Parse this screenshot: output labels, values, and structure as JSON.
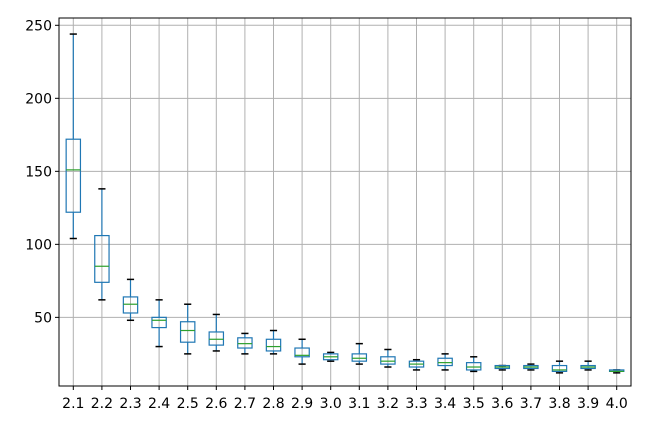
{
  "chart_data": {
    "type": "boxplot",
    "title": "",
    "xlabel": "",
    "ylabel": "",
    "ylim": [
      3,
      255
    ],
    "yticks": [
      50,
      100,
      150,
      200,
      250
    ],
    "grid": true,
    "categories": [
      "2.1",
      "2.2",
      "2.3",
      "2.4",
      "2.5",
      "2.6",
      "2.7",
      "2.8",
      "2.9",
      "3.0",
      "3.1",
      "3.2",
      "3.3",
      "3.4",
      "3.5",
      "3.6",
      "3.7",
      "3.8",
      "3.9",
      "4.0"
    ],
    "boxes": [
      {
        "whislo": 104,
        "q1": 122,
        "med": 151,
        "q3": 172,
        "whishi": 244
      },
      {
        "whislo": 62,
        "q1": 74,
        "med": 85,
        "q3": 106,
        "whishi": 138
      },
      {
        "whislo": 48,
        "q1": 53,
        "med": 59,
        "q3": 64,
        "whishi": 76
      },
      {
        "whislo": 30,
        "q1": 43,
        "med": 48,
        "q3": 50,
        "whishi": 62
      },
      {
        "whislo": 25,
        "q1": 33,
        "med": 41,
        "q3": 47,
        "whishi": 59
      },
      {
        "whislo": 27,
        "q1": 31,
        "med": 35,
        "q3": 40,
        "whishi": 52
      },
      {
        "whislo": 25,
        "q1": 29,
        "med": 32,
        "q3": 36,
        "whishi": 39
      },
      {
        "whislo": 25,
        "q1": 27,
        "med": 30,
        "q3": 35,
        "whishi": 41
      },
      {
        "whislo": 18,
        "q1": 23,
        "med": 24,
        "q3": 29,
        "whishi": 35
      },
      {
        "whislo": 20,
        "q1": 21,
        "med": 23,
        "q3": 25,
        "whishi": 26
      },
      {
        "whislo": 18,
        "q1": 20,
        "med": 22,
        "q3": 25,
        "whishi": 32
      },
      {
        "whislo": 16,
        "q1": 18,
        "med": 20,
        "q3": 23,
        "whishi": 28
      },
      {
        "whislo": 14,
        "q1": 16,
        "med": 18,
        "q3": 20,
        "whishi": 21
      },
      {
        "whislo": 14,
        "q1": 17,
        "med": 19,
        "q3": 22,
        "whishi": 25
      },
      {
        "whislo": 13,
        "q1": 14,
        "med": 16,
        "q3": 19,
        "whishi": 23
      },
      {
        "whislo": 14,
        "q1": 15,
        "med": 16,
        "q3": 17,
        "whishi": 17
      },
      {
        "whislo": 14,
        "q1": 15,
        "med": 16,
        "q3": 17,
        "whishi": 18
      },
      {
        "whislo": 12,
        "q1": 13,
        "med": 14,
        "q3": 17,
        "whishi": 20
      },
      {
        "whislo": 14,
        "q1": 15,
        "med": 16,
        "q3": 17,
        "whishi": 20
      },
      {
        "whislo": 12,
        "q1": 13,
        "med": 13,
        "q3": 14,
        "whishi": 14
      }
    ],
    "colors": {
      "box": "#1f77b4",
      "median": "#2ca02c",
      "whisker": "#1f77b4",
      "cap": "#000000",
      "grid": "#b0b0b0",
      "axis": "#000000"
    }
  }
}
